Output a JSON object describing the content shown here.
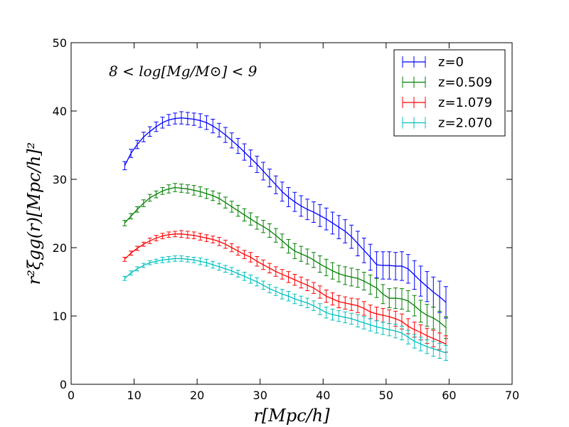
{
  "chart_data": {
    "type": "line",
    "title": "",
    "xlabel": "r[Mpc/h]",
    "ylabel": "r²ξgg(r)[Mpc/h]²",
    "annotation": "8 < log[Mg/M⊙] < 9",
    "xlim": [
      0,
      70
    ],
    "ylim": [
      0,
      50
    ],
    "xticks": [
      0,
      10,
      20,
      30,
      40,
      50,
      60,
      70
    ],
    "yticks": [
      0,
      10,
      20,
      30,
      40,
      50
    ],
    "grid": false,
    "legend_position": "top-right",
    "x": [
      8.5,
      9.5,
      10.5,
      11.5,
      12.5,
      13.5,
      14.5,
      15.5,
      16.5,
      17.5,
      18.5,
      19.5,
      20.5,
      21.5,
      22.5,
      23.5,
      24.5,
      25.5,
      26.5,
      27.5,
      28.5,
      29.5,
      30.5,
      31.5,
      32.5,
      33.5,
      34.5,
      35.5,
      36.5,
      37.5,
      38.5,
      39.5,
      40.5,
      41.5,
      42.5,
      43.5,
      44.5,
      45.5,
      46.5,
      47.5,
      48.5,
      49.5,
      50.5,
      51.5,
      52.5,
      53.5,
      54.5,
      55.5,
      56.5,
      57.5,
      58.5,
      59.5
    ],
    "series": [
      {
        "name": "z=0",
        "color": "#0000ff",
        "values": [
          32.0,
          33.8,
          35.1,
          36.2,
          37.0,
          37.7,
          38.3,
          38.7,
          38.9,
          39.0,
          38.9,
          38.8,
          38.6,
          38.3,
          37.8,
          37.2,
          36.5,
          35.7,
          34.9,
          34.0,
          33.1,
          32.2,
          31.2,
          30.2,
          29.2,
          28.2,
          27.4,
          26.7,
          26.1,
          25.6,
          25.2,
          24.7,
          24.2,
          23.6,
          23.0,
          22.4,
          21.6,
          20.6,
          19.6,
          18.6,
          17.5,
          17.4,
          17.4,
          17.3,
          17.3,
          16.9,
          16.0,
          15.1,
          14.3,
          13.5,
          12.8,
          12.0
        ],
        "errors": [
          0.6,
          0.6,
          0.6,
          0.7,
          0.7,
          0.7,
          0.8,
          0.8,
          0.8,
          0.9,
          0.9,
          0.9,
          1.0,
          1.0,
          1.0,
          1.0,
          1.1,
          1.1,
          1.1,
          1.2,
          1.2,
          1.2,
          1.3,
          1.3,
          1.3,
          1.4,
          1.4,
          1.4,
          1.5,
          1.5,
          1.5,
          1.6,
          1.6,
          1.6,
          1.7,
          1.7,
          1.7,
          1.8,
          1.8,
          1.9,
          1.9,
          2.0,
          2.0,
          2.0,
          2.1,
          2.1,
          2.1,
          2.2,
          2.2,
          2.2,
          2.3,
          2.3
        ]
      },
      {
        "name": "z=0.509",
        "color": "#008000",
        "values": [
          23.6,
          24.6,
          25.6,
          26.5,
          27.3,
          27.8,
          28.3,
          28.6,
          28.8,
          28.7,
          28.6,
          28.4,
          28.2,
          27.9,
          27.6,
          27.2,
          26.6,
          26.0,
          25.4,
          24.8,
          24.2,
          23.6,
          23.1,
          22.5,
          21.8,
          21.0,
          20.2,
          19.5,
          19.1,
          18.7,
          18.2,
          17.6,
          17.1,
          16.6,
          16.2,
          15.9,
          15.7,
          15.5,
          15.1,
          14.6,
          14.1,
          13.2,
          12.6,
          12.6,
          12.5,
          12.2,
          11.5,
          10.7,
          10.1,
          9.7,
          9.1,
          8.3
        ],
        "errors": [
          0.4,
          0.4,
          0.4,
          0.5,
          0.5,
          0.5,
          0.5,
          0.6,
          0.6,
          0.6,
          0.6,
          0.7,
          0.7,
          0.7,
          0.7,
          0.8,
          0.8,
          0.8,
          0.8,
          0.9,
          0.9,
          0.9,
          0.9,
          1.0,
          1.0,
          1.0,
          1.0,
          1.1,
          1.1,
          1.1,
          1.1,
          1.2,
          1.2,
          1.2,
          1.2,
          1.3,
          1.3,
          1.3,
          1.3,
          1.4,
          1.4,
          1.4,
          1.4,
          1.5,
          1.5,
          1.5,
          1.5,
          1.6,
          1.6,
          1.6,
          1.6,
          1.6
        ]
      },
      {
        "name": "z=1.079",
        "color": "#ff0000",
        "values": [
          18.3,
          19.2,
          19.9,
          20.5,
          21.0,
          21.4,
          21.7,
          21.9,
          22.0,
          22.0,
          21.9,
          21.8,
          21.6,
          21.4,
          21.2,
          20.9,
          20.5,
          20.0,
          19.5,
          19.0,
          18.6,
          18.0,
          17.5,
          17.0,
          16.5,
          16.1,
          15.7,
          15.3,
          14.9,
          14.5,
          14.1,
          13.5,
          12.9,
          12.5,
          12.1,
          11.9,
          11.7,
          11.5,
          11.1,
          10.6,
          10.3,
          10.1,
          9.9,
          9.6,
          9.2,
          8.5,
          8.0,
          7.6,
          7.1,
          6.7,
          6.3,
          5.9
        ],
        "errors": [
          0.3,
          0.3,
          0.3,
          0.3,
          0.4,
          0.4,
          0.4,
          0.4,
          0.4,
          0.5,
          0.5,
          0.5,
          0.5,
          0.5,
          0.5,
          0.6,
          0.6,
          0.6,
          0.6,
          0.6,
          0.7,
          0.7,
          0.7,
          0.7,
          0.7,
          0.7,
          0.8,
          0.8,
          0.8,
          0.8,
          0.8,
          0.9,
          0.9,
          0.9,
          0.9,
          0.9,
          0.9,
          1.0,
          1.0,
          1.0,
          1.0,
          1.0,
          1.0,
          1.1,
          1.1,
          1.1,
          1.1,
          1.1,
          1.1,
          1.2,
          1.2,
          1.2
        ]
      },
      {
        "name": "z=2.070",
        "color": "#00bfbf",
        "values": [
          15.5,
          16.3,
          16.9,
          17.4,
          17.8,
          18.0,
          18.2,
          18.3,
          18.4,
          18.4,
          18.3,
          18.2,
          18.0,
          17.8,
          17.5,
          17.2,
          16.9,
          16.6,
          16.2,
          15.8,
          15.4,
          15.0,
          14.5,
          14.0,
          13.6,
          13.2,
          12.9,
          12.5,
          12.2,
          11.9,
          11.5,
          11.0,
          10.5,
          10.2,
          10.0,
          9.8,
          9.6,
          9.3,
          9.0,
          8.7,
          8.4,
          8.2,
          8.0,
          7.8,
          7.5,
          6.9,
          6.3,
          5.9,
          5.5,
          5.2,
          4.9,
          4.6
        ],
        "errors": [
          0.3,
          0.3,
          0.3,
          0.3,
          0.3,
          0.3,
          0.4,
          0.4,
          0.4,
          0.4,
          0.4,
          0.4,
          0.5,
          0.5,
          0.5,
          0.5,
          0.5,
          0.5,
          0.5,
          0.6,
          0.6,
          0.6,
          0.6,
          0.6,
          0.6,
          0.7,
          0.7,
          0.7,
          0.7,
          0.7,
          0.7,
          0.8,
          0.8,
          0.8,
          0.8,
          0.8,
          0.8,
          0.9,
          0.9,
          0.9,
          0.9,
          0.9,
          0.9,
          1.0,
          1.0,
          1.0,
          1.0,
          1.0,
          1.0,
          1.1,
          1.1,
          1.1
        ]
      }
    ]
  }
}
